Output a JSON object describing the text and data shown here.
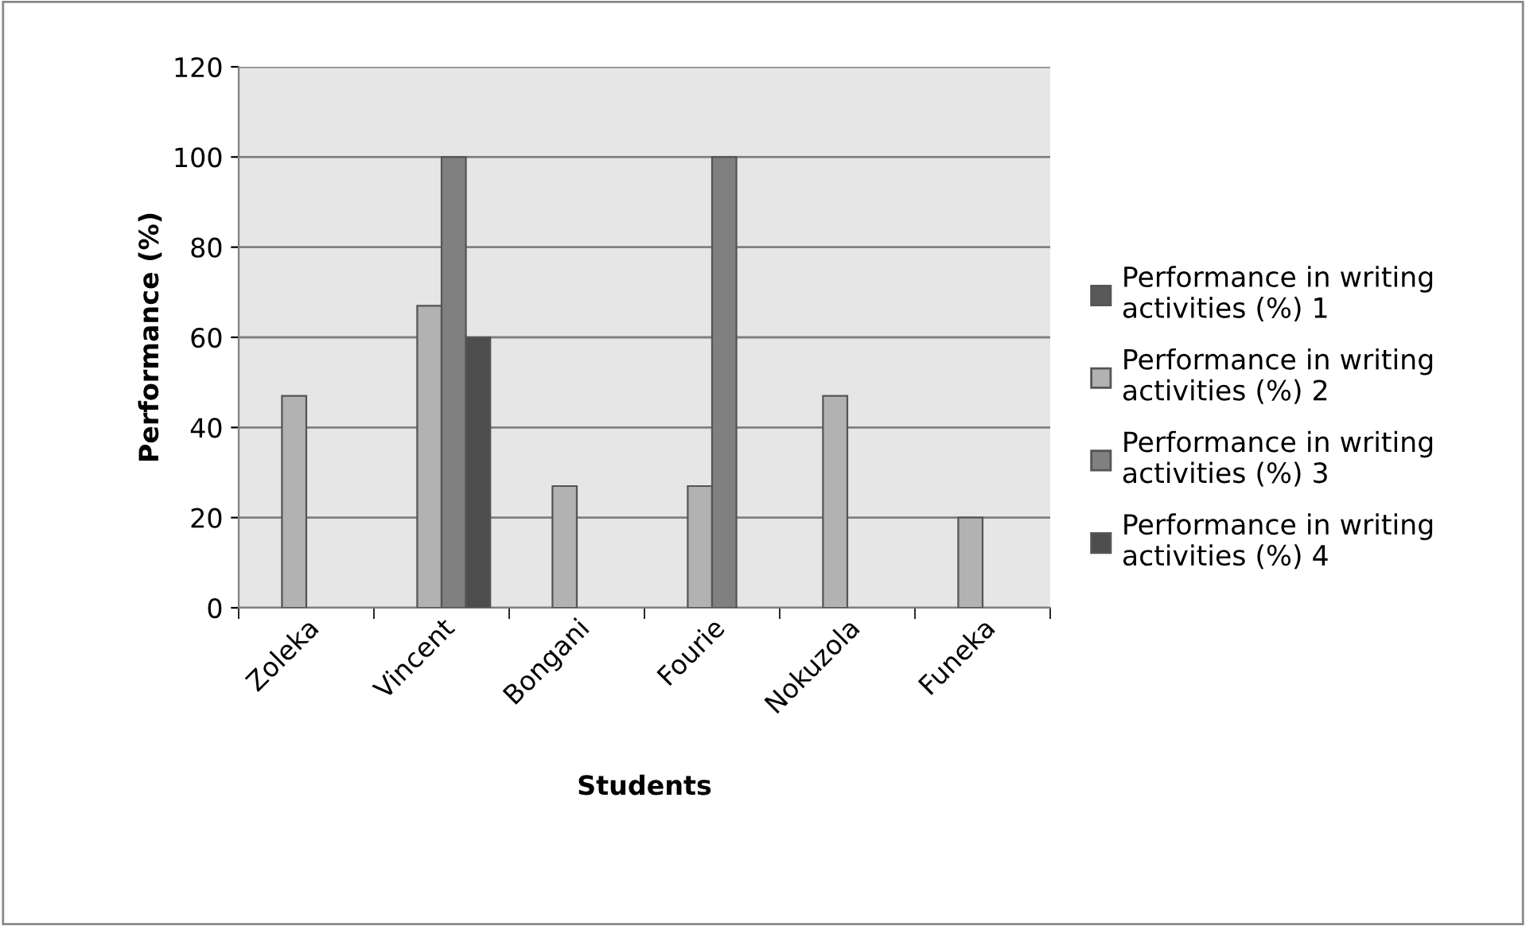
{
  "chart_data": {
    "type": "bar",
    "xlabel": "Students",
    "ylabel": "Performance (%)",
    "categories": [
      "Zoleka",
      "Vincent",
      "Bongani",
      "Fourie",
      "Nokuzola",
      "Funeka"
    ],
    "series": [
      {
        "name": "Performance in writing activities (%) 1",
        "color": "#595959",
        "values": [
          null,
          null,
          null,
          null,
          null,
          null
        ]
      },
      {
        "name": "Performance in writing activities (%) 2",
        "color": "#b2b2b2",
        "values": [
          47,
          67,
          27,
          27,
          47,
          20
        ]
      },
      {
        "name": "Performance in writing activities (%) 3",
        "color": "#808080",
        "values": [
          null,
          100,
          null,
          100,
          null,
          null
        ]
      },
      {
        "name": "Performance in writing activities (%) 4",
        "color": "#4d4d4d",
        "values": [
          null,
          60,
          null,
          null,
          null,
          null
        ]
      }
    ],
    "ylim": [
      0,
      120
    ],
    "yticks": [
      0,
      20,
      40,
      60,
      80,
      100,
      120
    ],
    "grid": "y",
    "legend": "right"
  }
}
